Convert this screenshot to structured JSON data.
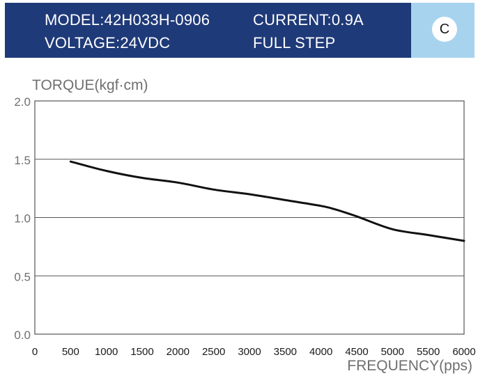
{
  "header": {
    "model": "MODEL:42H033H-0906",
    "current": "CURRENT:0.9A",
    "voltage": "VOLTAGE:24VDC",
    "step_mode": "FULL STEP",
    "badge": "C"
  },
  "colors": {
    "banner": "#1f3a78",
    "badge_panel": "#a8d3ef",
    "curve": "#111111",
    "grid": "#555555"
  },
  "chart_data": {
    "type": "line",
    "xlabel": "FREQUENCY(pps)",
    "ylabel": "TORQUE(kgf·cm)",
    "xlim": [
      0,
      6000
    ],
    "ylim": [
      0,
      2.0
    ],
    "x_ticks": [
      "0",
      "500",
      "1000",
      "1500",
      "2000",
      "2500",
      "3000",
      "3500",
      "4000",
      "4500",
      "5000",
      "5500",
      "6000"
    ],
    "y_ticks": [
      "0.0",
      "0.5",
      "1.0",
      "1.5",
      "2.0"
    ],
    "grid": "horizontal",
    "series": [
      {
        "x": [
          500,
          1000,
          1500,
          2000,
          2500,
          3000,
          3500,
          4000,
          4200,
          4500,
          5000,
          5500,
          6000
        ],
        "values": [
          1.48,
          1.4,
          1.34,
          1.3,
          1.24,
          1.2,
          1.15,
          1.1,
          1.07,
          1.01,
          0.9,
          0.85,
          0.8
        ]
      }
    ]
  }
}
